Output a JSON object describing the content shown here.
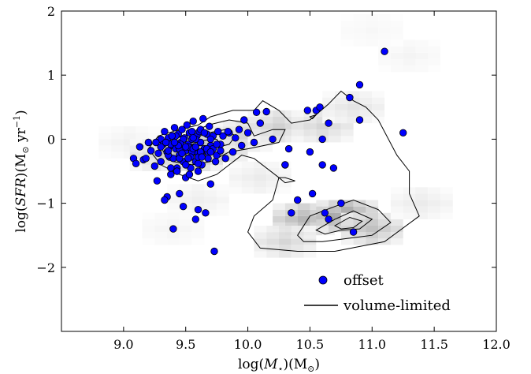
{
  "chart_data": {
    "type": "scatter",
    "xlabel": "log(M⋆)(M⊙)",
    "ylabel": "log(SFR)(M⊙ yr⁻¹)",
    "xlim": [
      8.5,
      12.0
    ],
    "ylim": [
      -3.0,
      2.0
    ],
    "x_ticks": [
      9.0,
      9.5,
      10.0,
      10.5,
      11.0,
      11.5,
      12.0
    ],
    "x_tick_labels": [
      "9.0",
      "9.5",
      "10.0",
      "10.5",
      "11.0",
      "11.5",
      "12.0"
    ],
    "y_ticks": [
      -2,
      -1,
      0,
      1,
      2
    ],
    "y_tick_labels": [
      "−2",
      "−1",
      "0",
      "1",
      "2"
    ],
    "legend": {
      "placement": "lower-right",
      "entries": [
        {
          "label": "offset",
          "marker": "circle",
          "color": "#0000ff"
        },
        {
          "label": "volume-limited",
          "marker": "line",
          "color": "#000000"
        }
      ]
    },
    "colors": {
      "points": "#0000ff",
      "point_edge": "#000000",
      "contour": "#000000"
    },
    "series": [
      {
        "name": "offset",
        "x": [
          9.08,
          9.1,
          9.13,
          9.16,
          9.18,
          9.2,
          9.22,
          9.25,
          9.27,
          9.28,
          9.3,
          9.3,
          9.32,
          9.33,
          9.35,
          9.35,
          9.36,
          9.37,
          9.38,
          9.39,
          9.4,
          9.4,
          9.41,
          9.42,
          9.43,
          9.44,
          9.45,
          9.45,
          9.46,
          9.47,
          9.48,
          9.48,
          9.49,
          9.5,
          9.5,
          9.51,
          9.52,
          9.52,
          9.53,
          9.54,
          9.55,
          9.55,
          9.56,
          9.57,
          9.58,
          9.58,
          9.59,
          9.6,
          9.6,
          9.61,
          9.62,
          9.63,
          9.64,
          9.65,
          9.66,
          9.67,
          9.68,
          9.69,
          9.7,
          9.7,
          9.72,
          9.73,
          9.75,
          9.76,
          9.78,
          9.8,
          9.82,
          9.85,
          9.88,
          9.9,
          9.93,
          9.95,
          9.97,
          10.0,
          10.05,
          10.1,
          9.33,
          9.35,
          9.38,
          9.4,
          9.45,
          9.48,
          9.53,
          9.6,
          9.62,
          9.55,
          9.63,
          9.7,
          9.38,
          9.45,
          9.42,
          9.52,
          9.58,
          9.65,
          9.72,
          9.74,
          9.5,
          9.43,
          9.36,
          9.6,
          9.78,
          9.84,
          10.07,
          10.15,
          10.2,
          10.3,
          10.33,
          10.4,
          10.5,
          10.55,
          10.58,
          10.6,
          10.65,
          10.69,
          10.75,
          10.82,
          10.85,
          10.9,
          11.1,
          11.25,
          10.48,
          10.52,
          10.62,
          10.65,
          10.3,
          10.35,
          10.6,
          10.9,
          9.68,
          9.6,
          9.56,
          9.46,
          9.3,
          9.26,
          9.34,
          9.44,
          9.5,
          9.58,
          9.67,
          9.75,
          9.62,
          9.54,
          9.47,
          9.41,
          9.39,
          9.52,
          9.63,
          9.36,
          9.56,
          9.7
        ],
        "y": [
          -0.3,
          -0.38,
          -0.12,
          -0.32,
          -0.3,
          -0.05,
          -0.18,
          -0.42,
          -0.65,
          -0.22,
          0.0,
          -0.35,
          -0.08,
          0.12,
          -0.2,
          -0.9,
          0.02,
          -0.28,
          -0.55,
          -0.1,
          0.05,
          -1.4,
          0.18,
          -0.15,
          -0.45,
          0.08,
          -0.25,
          -0.85,
          -0.05,
          0.15,
          -0.35,
          -1.05,
          0.02,
          -0.18,
          -0.6,
          0.22,
          -0.08,
          -0.3,
          0.1,
          -0.45,
          0.0,
          -0.2,
          0.28,
          -0.12,
          -0.35,
          -1.25,
          0.05,
          -0.22,
          -0.5,
          0.12,
          -0.05,
          -0.4,
          0.32,
          -0.15,
          -1.15,
          0.08,
          -0.3,
          0.2,
          -0.1,
          -0.7,
          0.05,
          -1.75,
          -0.25,
          0.12,
          -0.08,
          0.05,
          -0.3,
          0.1,
          -0.2,
          0.02,
          0.15,
          -0.1,
          0.3,
          0.1,
          -0.05,
          0.25,
          -0.95,
          -0.2,
          -0.08,
          -0.3,
          -0.15,
          0.0,
          -0.55,
          -0.38,
          0.15,
          0.12,
          -0.25,
          0.0,
          -0.45,
          -0.3,
          0.05,
          -0.12,
          0.0,
          0.1,
          -0.15,
          -0.35,
          -0.4,
          -0.5,
          -0.25,
          -0.28,
          -0.18,
          0.12,
          0.42,
          0.43,
          0.0,
          -0.4,
          -0.15,
          -0.95,
          -0.2,
          0.45,
          0.5,
          0.0,
          0.25,
          -0.45,
          -1.0,
          0.65,
          -1.45,
          0.85,
          1.37,
          0.1,
          0.45,
          -0.85,
          -1.15,
          -1.25,
          -0.4,
          -1.15,
          -0.4,
          0.3,
          -0.2,
          -1.1,
          -0.15,
          -0.08,
          -0.12,
          -0.05,
          -0.05,
          -0.1,
          -0.12,
          -0.12,
          -0.15,
          -0.08,
          -0.2,
          -0.28,
          -0.22,
          -0.05,
          0.05,
          -0.3,
          -0.28,
          -0.18,
          0.02,
          -0.2
        ]
      },
      {
        "name": "volume-limited",
        "type": "contour+density",
        "density_cells": [
          {
            "x": 9.05,
            "y": -0.05,
            "v": 0.1
          },
          {
            "x": 9.3,
            "y": -0.25,
            "v": 0.3
          },
          {
            "x": 9.55,
            "y": -0.25,
            "v": 0.55
          },
          {
            "x": 9.75,
            "y": -0.1,
            "v": 0.5
          },
          {
            "x": 9.95,
            "y": 0.05,
            "v": 0.3
          },
          {
            "x": 10.25,
            "y": 0.2,
            "v": 0.35
          },
          {
            "x": 10.6,
            "y": 0.2,
            "v": 0.3
          },
          {
            "x": 10.85,
            "y": 0.5,
            "v": 0.2
          },
          {
            "x": 11.3,
            "y": 1.3,
            "v": 0.08
          },
          {
            "x": 11.0,
            "y": 1.7,
            "v": 0.06
          },
          {
            "x": 10.45,
            "y": -1.25,
            "v": 0.55
          },
          {
            "x": 10.8,
            "y": -1.2,
            "v": 0.75
          },
          {
            "x": 11.0,
            "y": -1.4,
            "v": 0.45
          },
          {
            "x": 11.4,
            "y": -1.0,
            "v": 0.15
          },
          {
            "x": 10.3,
            "y": -1.6,
            "v": 0.3
          },
          {
            "x": 9.6,
            "y": -0.95,
            "v": 0.12
          },
          {
            "x": 10.1,
            "y": -0.6,
            "v": 0.15
          },
          {
            "x": 9.4,
            "y": -1.4,
            "v": 0.08
          }
        ],
        "contours": [
          [
            [
              9.2,
              -0.15
            ],
            [
              9.28,
              0.05
            ],
            [
              9.45,
              0.15
            ],
            [
              9.6,
              0.22
            ],
            [
              9.7,
              0.35
            ],
            [
              9.88,
              0.45
            ],
            [
              10.05,
              0.45
            ],
            [
              10.12,
              0.6
            ],
            [
              10.25,
              0.45
            ],
            [
              10.35,
              0.25
            ],
            [
              10.5,
              0.3
            ],
            [
              10.65,
              0.55
            ],
            [
              10.75,
              0.75
            ],
            [
              10.85,
              0.6
            ],
            [
              10.95,
              0.5
            ],
            [
              11.05,
              0.3
            ],
            [
              11.2,
              -0.25
            ],
            [
              11.3,
              -0.5
            ],
            [
              11.3,
              -0.85
            ],
            [
              11.38,
              -1.2
            ],
            [
              11.1,
              -1.6
            ],
            [
              10.7,
              -1.75
            ],
            [
              10.4,
              -1.75
            ],
            [
              10.1,
              -1.7
            ],
            [
              10.0,
              -1.45
            ],
            [
              10.05,
              -1.2
            ],
            [
              10.2,
              -0.95
            ],
            [
              10.25,
              -0.6
            ],
            [
              10.05,
              -0.3
            ],
            [
              9.95,
              -0.25
            ],
            [
              9.75,
              -0.55
            ],
            [
              9.6,
              -0.65
            ],
            [
              9.45,
              -0.55
            ],
            [
              9.3,
              -0.4
            ],
            [
              9.2,
              -0.15
            ]
          ],
          [
            [
              9.3,
              -0.15
            ],
            [
              9.4,
              0.0
            ],
            [
              9.55,
              0.1
            ],
            [
              9.68,
              0.22
            ],
            [
              9.85,
              0.3
            ],
            [
              10.0,
              0.25
            ],
            [
              10.05,
              0.05
            ],
            [
              10.2,
              0.15
            ],
            [
              10.3,
              0.15
            ],
            [
              10.25,
              -0.05
            ],
            [
              10.0,
              -0.15
            ],
            [
              9.85,
              -0.2
            ],
            [
              9.7,
              -0.35
            ],
            [
              9.55,
              -0.4
            ],
            [
              9.4,
              -0.35
            ],
            [
              9.3,
              -0.15
            ]
          ],
          [
            [
              9.45,
              -0.15
            ],
            [
              9.55,
              0.0
            ],
            [
              9.68,
              0.1
            ],
            [
              9.82,
              0.15
            ],
            [
              9.9,
              0.05
            ],
            [
              9.85,
              -0.08
            ],
            [
              9.7,
              -0.15
            ],
            [
              9.6,
              -0.25
            ],
            [
              9.5,
              -0.25
            ],
            [
              9.45,
              -0.15
            ]
          ],
          [
            [
              9.58,
              -0.12
            ],
            [
              9.65,
              -0.02
            ],
            [
              9.75,
              0.0
            ],
            [
              9.78,
              -0.08
            ],
            [
              9.7,
              -0.15
            ],
            [
              9.62,
              -0.2
            ],
            [
              9.58,
              -0.12
            ]
          ],
          [
            [
              10.4,
              -1.5
            ],
            [
              10.5,
              -1.2
            ],
            [
              10.7,
              -1.05
            ],
            [
              10.85,
              -0.95
            ],
            [
              11.05,
              -1.1
            ],
            [
              11.15,
              -1.3
            ],
            [
              11.0,
              -1.5
            ],
            [
              10.8,
              -1.55
            ],
            [
              10.6,
              -1.6
            ],
            [
              10.45,
              -1.6
            ],
            [
              10.4,
              -1.5
            ]
          ],
          [
            [
              10.55,
              -1.42
            ],
            [
              10.7,
              -1.25
            ],
            [
              10.85,
              -1.12
            ],
            [
              11.0,
              -1.25
            ],
            [
              10.9,
              -1.4
            ],
            [
              10.75,
              -1.42
            ],
            [
              10.62,
              -1.48
            ],
            [
              10.55,
              -1.42
            ]
          ],
          [
            [
              10.7,
              -1.35
            ],
            [
              10.82,
              -1.22
            ],
            [
              10.92,
              -1.28
            ],
            [
              10.85,
              -1.38
            ],
            [
              10.75,
              -1.4
            ],
            [
              10.7,
              -1.35
            ]
          ],
          [
            [
              10.25,
              -0.6
            ],
            [
              10.3,
              -0.6
            ],
            [
              10.38,
              -0.65
            ],
            [
              10.3,
              -0.68
            ],
            [
              10.25,
              -0.6
            ]
          ],
          [
            [
              10.5,
              0.35
            ],
            [
              10.55,
              0.38
            ],
            [
              10.52,
              0.32
            ],
            [
              10.5,
              0.35
            ]
          ]
        ]
      }
    ]
  }
}
